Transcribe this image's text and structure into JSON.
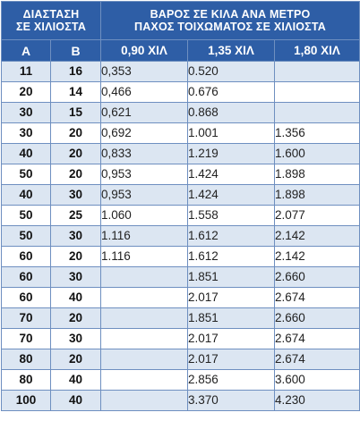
{
  "header": {
    "dim_title_1": "ΔΙΑΣΤΑΣΗ",
    "dim_title_2": "ΣΕ ΧΙΛΙΟΣΤΑ",
    "weight_title_1": "ΒΑΡΟΣ ΣΕ ΚΙΛΑ ΑΝΑ ΜΕΤΡΟ",
    "weight_title_2": "ΠΑΧΟΣ ΤΟΙΧΩΜΑΤΟΣ ΣΕ ΧΙΛΙΟΣΤΑ",
    "col_a": "Α",
    "col_b": "Β",
    "col_t1": "0,90 ΧΙΛ",
    "col_t2": "1,35 ΧΙΛ",
    "col_t3": "1,80 ΧΙΛ"
  },
  "rows": [
    {
      "a": "11",
      "b": "16",
      "t1": "0,353",
      "t2": "0.520",
      "t3": ""
    },
    {
      "a": "20",
      "b": "14",
      "t1": "0,466",
      "t2": "0.676",
      "t3": ""
    },
    {
      "a": "30",
      "b": "15",
      "t1": "0,621",
      "t2": "0.868",
      "t3": ""
    },
    {
      "a": "30",
      "b": "20",
      "t1": "0,692",
      "t2": "1.001",
      "t3": "1.356"
    },
    {
      "a": "40",
      "b": "20",
      "t1": "0,833",
      "t2": "1.219",
      "t3": "1.600"
    },
    {
      "a": "50",
      "b": "20",
      "t1": "0,953",
      "t2": "1.424",
      "t3": "1.898"
    },
    {
      "a": "40",
      "b": "30",
      "t1": "0,953",
      "t2": "1.424",
      "t3": "1.898"
    },
    {
      "a": "50",
      "b": "25",
      "t1": "1.060",
      "t2": "1.558",
      "t3": "2.077"
    },
    {
      "a": "50",
      "b": "30",
      "t1": "1.116",
      "t2": "1.612",
      "t3": "2.142"
    },
    {
      "a": "60",
      "b": "20",
      "t1": "1.116",
      "t2": "1.612",
      "t3": "2.142"
    },
    {
      "a": "60",
      "b": "30",
      "t1": "",
      "t2": "1.851",
      "t3": "2.660"
    },
    {
      "a": "60",
      "b": "40",
      "t1": "",
      "t2": "2.017",
      "t3": "2.674"
    },
    {
      "a": "70",
      "b": "20",
      "t1": "",
      "t2": "1.851",
      "t3": "2.660"
    },
    {
      "a": "70",
      "b": "30",
      "t1": "",
      "t2": "2.017",
      "t3": "2.674"
    },
    {
      "a": "80",
      "b": "20",
      "t1": "",
      "t2": "2.017",
      "t3": "2.674"
    },
    {
      "a": "80",
      "b": "40",
      "t1": "",
      "t2": "2.856",
      "t3": "3.600"
    },
    {
      "a": "100",
      "b": "40",
      "t1": "",
      "t2": "3.370",
      "t3": "4.230"
    }
  ],
  "colors": {
    "header_bg": "#2e5ea6",
    "header_text": "#ffffff",
    "row_alt_bg": "#dce6f2",
    "row_bg": "#ffffff",
    "grid": "#6e8fc0"
  }
}
